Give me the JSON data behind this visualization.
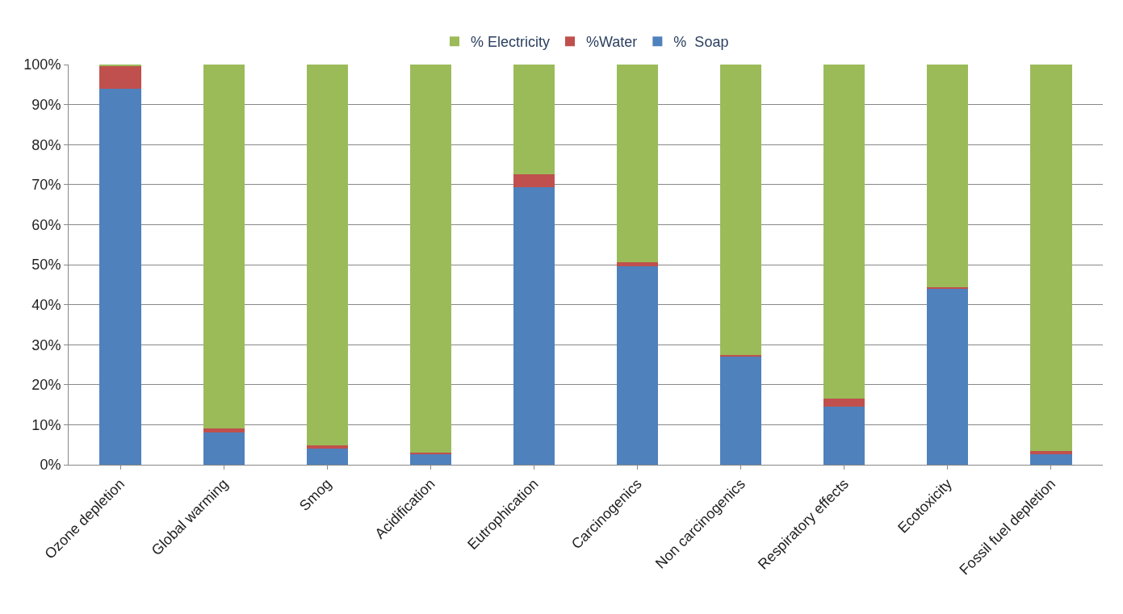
{
  "chart_data": {
    "type": "bar",
    "stacked": true,
    "categories": [
      "Ozone depletion",
      "Global warming",
      "Smog",
      "Acidification",
      "Eutrophication",
      "Carcinogenics",
      "Non carcinogenics",
      "Respiratory effects",
      "Ecotoxicity",
      "Fossil fuel depletion"
    ],
    "series": [
      {
        "name": "%  Soap",
        "color": "#4f81bd",
        "values": [
          94,
          8,
          4,
          2.6,
          69.4,
          49.5,
          27.2,
          14.6,
          44,
          2.6
        ]
      },
      {
        "name": "%Water",
        "color": "#c0504d",
        "values": [
          5.6,
          1,
          0.8,
          0.5,
          3.2,
          1.2,
          0.2,
          2,
          0.4,
          0.8
        ]
      },
      {
        "name": "% Electricity",
        "color": "#9bbb59",
        "values": [
          0.4,
          91,
          95.2,
          96.9,
          27.4,
          49.3,
          72.6,
          83.4,
          55.6,
          96.6
        ]
      }
    ],
    "ylim": [
      0,
      100
    ],
    "yticks": [
      {
        "value": 0,
        "label": "0%"
      },
      {
        "value": 10,
        "label": "10%"
      },
      {
        "value": 20,
        "label": "20%"
      },
      {
        "value": 30,
        "label": "30%"
      },
      {
        "value": 40,
        "label": "40%"
      },
      {
        "value": 50,
        "label": "50%"
      },
      {
        "value": 60,
        "label": "60%"
      },
      {
        "value": 70,
        "label": "70%"
      },
      {
        "value": 80,
        "label": "80%"
      },
      {
        "value": 90,
        "label": "90%"
      },
      {
        "value": 100,
        "label": "100%"
      }
    ],
    "grid": "y",
    "legend": "top"
  }
}
